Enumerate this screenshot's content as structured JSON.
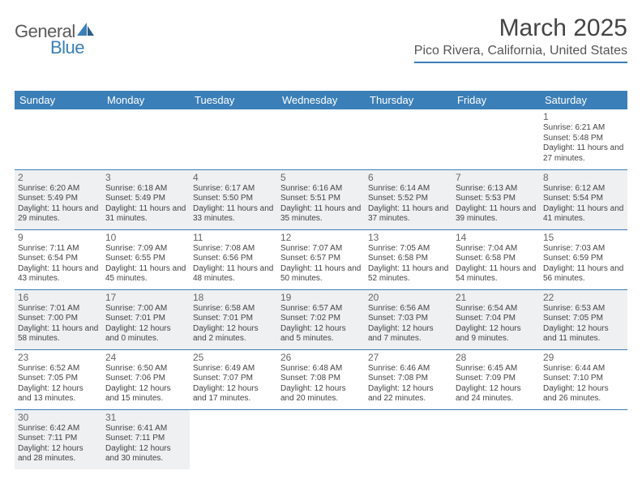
{
  "logo": {
    "text1": "General",
    "text2": "Blue",
    "accent_color": "#3b7fb8"
  },
  "title": "March 2025",
  "location": "Pico Rivera, California, United States",
  "header_bg": "#3b7fb8",
  "header_fg": "#ffffff",
  "shaded_bg": "#eef0f2",
  "border_color": "#3b7fb8",
  "weekdays": [
    "Sunday",
    "Monday",
    "Tuesday",
    "Wednesday",
    "Thursday",
    "Friday",
    "Saturday"
  ],
  "weeks": [
    [
      null,
      null,
      null,
      null,
      null,
      null,
      {
        "n": "1",
        "sr": "Sunrise: 6:21 AM",
        "ss": "Sunset: 5:48 PM",
        "dl": "Daylight: 11 hours and 27 minutes."
      }
    ],
    [
      {
        "n": "2",
        "sr": "Sunrise: 6:20 AM",
        "ss": "Sunset: 5:49 PM",
        "dl": "Daylight: 11 hours and 29 minutes."
      },
      {
        "n": "3",
        "sr": "Sunrise: 6:18 AM",
        "ss": "Sunset: 5:49 PM",
        "dl": "Daylight: 11 hours and 31 minutes."
      },
      {
        "n": "4",
        "sr": "Sunrise: 6:17 AM",
        "ss": "Sunset: 5:50 PM",
        "dl": "Daylight: 11 hours and 33 minutes."
      },
      {
        "n": "5",
        "sr": "Sunrise: 6:16 AM",
        "ss": "Sunset: 5:51 PM",
        "dl": "Daylight: 11 hours and 35 minutes."
      },
      {
        "n": "6",
        "sr": "Sunrise: 6:14 AM",
        "ss": "Sunset: 5:52 PM",
        "dl": "Daylight: 11 hours and 37 minutes."
      },
      {
        "n": "7",
        "sr": "Sunrise: 6:13 AM",
        "ss": "Sunset: 5:53 PM",
        "dl": "Daylight: 11 hours and 39 minutes."
      },
      {
        "n": "8",
        "sr": "Sunrise: 6:12 AM",
        "ss": "Sunset: 5:54 PM",
        "dl": "Daylight: 11 hours and 41 minutes."
      }
    ],
    [
      {
        "n": "9",
        "sr": "Sunrise: 7:11 AM",
        "ss": "Sunset: 6:54 PM",
        "dl": "Daylight: 11 hours and 43 minutes."
      },
      {
        "n": "10",
        "sr": "Sunrise: 7:09 AM",
        "ss": "Sunset: 6:55 PM",
        "dl": "Daylight: 11 hours and 45 minutes."
      },
      {
        "n": "11",
        "sr": "Sunrise: 7:08 AM",
        "ss": "Sunset: 6:56 PM",
        "dl": "Daylight: 11 hours and 48 minutes."
      },
      {
        "n": "12",
        "sr": "Sunrise: 7:07 AM",
        "ss": "Sunset: 6:57 PM",
        "dl": "Daylight: 11 hours and 50 minutes."
      },
      {
        "n": "13",
        "sr": "Sunrise: 7:05 AM",
        "ss": "Sunset: 6:58 PM",
        "dl": "Daylight: 11 hours and 52 minutes."
      },
      {
        "n": "14",
        "sr": "Sunrise: 7:04 AM",
        "ss": "Sunset: 6:58 PM",
        "dl": "Daylight: 11 hours and 54 minutes."
      },
      {
        "n": "15",
        "sr": "Sunrise: 7:03 AM",
        "ss": "Sunset: 6:59 PM",
        "dl": "Daylight: 11 hours and 56 minutes."
      }
    ],
    [
      {
        "n": "16",
        "sr": "Sunrise: 7:01 AM",
        "ss": "Sunset: 7:00 PM",
        "dl": "Daylight: 11 hours and 58 minutes."
      },
      {
        "n": "17",
        "sr": "Sunrise: 7:00 AM",
        "ss": "Sunset: 7:01 PM",
        "dl": "Daylight: 12 hours and 0 minutes."
      },
      {
        "n": "18",
        "sr": "Sunrise: 6:58 AM",
        "ss": "Sunset: 7:01 PM",
        "dl": "Daylight: 12 hours and 2 minutes."
      },
      {
        "n": "19",
        "sr": "Sunrise: 6:57 AM",
        "ss": "Sunset: 7:02 PM",
        "dl": "Daylight: 12 hours and 5 minutes."
      },
      {
        "n": "20",
        "sr": "Sunrise: 6:56 AM",
        "ss": "Sunset: 7:03 PM",
        "dl": "Daylight: 12 hours and 7 minutes."
      },
      {
        "n": "21",
        "sr": "Sunrise: 6:54 AM",
        "ss": "Sunset: 7:04 PM",
        "dl": "Daylight: 12 hours and 9 minutes."
      },
      {
        "n": "22",
        "sr": "Sunrise: 6:53 AM",
        "ss": "Sunset: 7:05 PM",
        "dl": "Daylight: 12 hours and 11 minutes."
      }
    ],
    [
      {
        "n": "23",
        "sr": "Sunrise: 6:52 AM",
        "ss": "Sunset: 7:05 PM",
        "dl": "Daylight: 12 hours and 13 minutes."
      },
      {
        "n": "24",
        "sr": "Sunrise: 6:50 AM",
        "ss": "Sunset: 7:06 PM",
        "dl": "Daylight: 12 hours and 15 minutes."
      },
      {
        "n": "25",
        "sr": "Sunrise: 6:49 AM",
        "ss": "Sunset: 7:07 PM",
        "dl": "Daylight: 12 hours and 17 minutes."
      },
      {
        "n": "26",
        "sr": "Sunrise: 6:48 AM",
        "ss": "Sunset: 7:08 PM",
        "dl": "Daylight: 12 hours and 20 minutes."
      },
      {
        "n": "27",
        "sr": "Sunrise: 6:46 AM",
        "ss": "Sunset: 7:08 PM",
        "dl": "Daylight: 12 hours and 22 minutes."
      },
      {
        "n": "28",
        "sr": "Sunrise: 6:45 AM",
        "ss": "Sunset: 7:09 PM",
        "dl": "Daylight: 12 hours and 24 minutes."
      },
      {
        "n": "29",
        "sr": "Sunrise: 6:44 AM",
        "ss": "Sunset: 7:10 PM",
        "dl": "Daylight: 12 hours and 26 minutes."
      }
    ],
    [
      {
        "n": "30",
        "sr": "Sunrise: 6:42 AM",
        "ss": "Sunset: 7:11 PM",
        "dl": "Daylight: 12 hours and 28 minutes."
      },
      {
        "n": "31",
        "sr": "Sunrise: 6:41 AM",
        "ss": "Sunset: 7:11 PM",
        "dl": "Daylight: 12 hours and 30 minutes."
      },
      null,
      null,
      null,
      null,
      null
    ]
  ]
}
